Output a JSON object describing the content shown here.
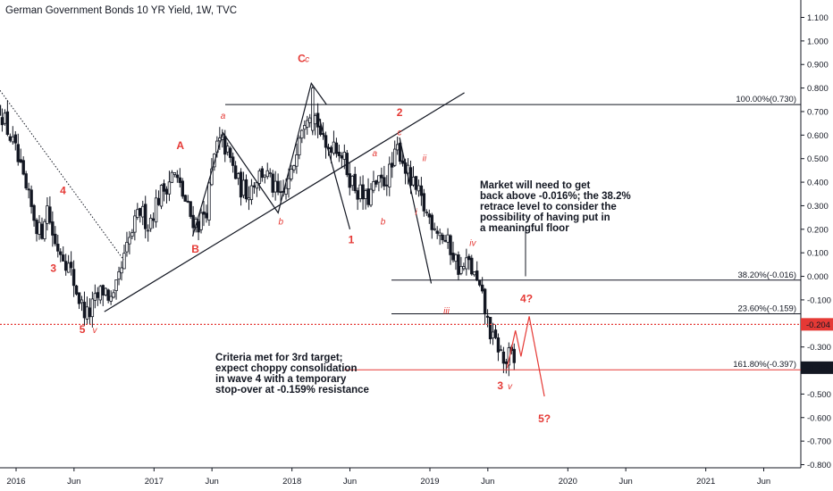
{
  "chart_title": "German Government Bonds 10 YR Yield, 1W, TVC",
  "chart_data": {
    "type": "candlestick",
    "y_ticks": [
      1.1,
      1.0,
      0.9,
      0.8,
      0.7,
      0.6,
      0.5,
      0.4,
      0.3,
      0.2,
      0.1,
      0.0,
      -0.1,
      -0.2,
      -0.3,
      -0.4,
      -0.5,
      -0.6,
      -0.7,
      -0.8
    ],
    "y_tick_labels": [
      "1.100",
      "1.000",
      "0.900",
      "0.800",
      "0.700",
      "0.600",
      "0.500",
      "0.400",
      "0.300",
      "0.200",
      "0.100",
      "0.000",
      "-0.100",
      "-0.200",
      "-0.300",
      "-0.400",
      "-0.500",
      "-0.600",
      "-0.700",
      "-0.800"
    ],
    "ylim": [
      -0.81,
      1.16
    ],
    "x_ticks": [
      {
        "label": "2016",
        "t": 2016.0
      },
      {
        "label": "Jun",
        "t": 2016.42
      },
      {
        "label": "2017",
        "t": 2017.0
      },
      {
        "label": "Jun",
        "t": 2017.42
      },
      {
        "label": "2018",
        "t": 2018.0
      },
      {
        "label": "Jun",
        "t": 2018.42
      },
      {
        "label": "2019",
        "t": 2019.0
      },
      {
        "label": "Jun",
        "t": 2019.42
      },
      {
        "label": "2020",
        "t": 2020.0
      },
      {
        "label": "Jun",
        "t": 2020.42
      },
      {
        "label": "2021",
        "t": 2021.0
      },
      {
        "label": "Jun",
        "t": 2021.42
      }
    ],
    "xlim": [
      2015.88,
      2022.0
    ],
    "price_path": [
      [
        2015.88,
        0.72
      ],
      [
        2015.94,
        0.62
      ],
      [
        2016.0,
        0.52
      ],
      [
        2016.06,
        0.38
      ],
      [
        2016.12,
        0.27
      ],
      [
        2016.18,
        0.17
      ],
      [
        2016.22,
        0.31
      ],
      [
        2016.28,
        0.14
      ],
      [
        2016.34,
        0.1
      ],
      [
        2016.4,
        0.01
      ],
      [
        2016.47,
        -0.12
      ],
      [
        2016.52,
        -0.17
      ],
      [
        2016.58,
        -0.1
      ],
      [
        2016.64,
        -0.05
      ],
      [
        2016.7,
        -0.12
      ],
      [
        2016.76,
        0.02
      ],
      [
        2016.83,
        0.17
      ],
      [
        2016.9,
        0.28
      ],
      [
        2016.96,
        0.22
      ],
      [
        2017.02,
        0.32
      ],
      [
        2017.08,
        0.38
      ],
      [
        2017.14,
        0.44
      ],
      [
        2017.2,
        0.36
      ],
      [
        2017.26,
        0.26
      ],
      [
        2017.32,
        0.22
      ],
      [
        2017.38,
        0.29
      ],
      [
        2017.45,
        0.55
      ],
      [
        2017.5,
        0.57
      ],
      [
        2017.56,
        0.48
      ],
      [
        2017.62,
        0.38
      ],
      [
        2017.68,
        0.36
      ],
      [
        2017.74,
        0.42
      ],
      [
        2017.8,
        0.45
      ],
      [
        2017.86,
        0.38
      ],
      [
        2017.92,
        0.32
      ],
      [
        2018.0,
        0.43
      ],
      [
        2018.05,
        0.62
      ],
      [
        2018.12,
        0.72
      ],
      [
        2018.18,
        0.67
      ],
      [
        2018.24,
        0.53
      ],
      [
        2018.3,
        0.58
      ],
      [
        2018.36,
        0.52
      ],
      [
        2018.42,
        0.42
      ],
      [
        2018.48,
        0.36
      ],
      [
        2018.54,
        0.32
      ],
      [
        2018.6,
        0.38
      ],
      [
        2018.66,
        0.4
      ],
      [
        2018.72,
        0.45
      ],
      [
        2018.77,
        0.55
      ],
      [
        2018.8,
        0.5
      ],
      [
        2018.86,
        0.4
      ],
      [
        2018.92,
        0.34
      ],
      [
        2018.98,
        0.26
      ],
      [
        2019.04,
        0.22
      ],
      [
        2019.1,
        0.16
      ],
      [
        2019.16,
        0.11
      ],
      [
        2019.22,
        0.02
      ],
      [
        2019.28,
        0.06
      ],
      [
        2019.34,
        -0.03
      ],
      [
        2019.38,
        -0.1
      ],
      [
        2019.42,
        -0.2
      ],
      [
        2019.46,
        -0.28
      ],
      [
        2019.5,
        -0.3
      ],
      [
        2019.54,
        -0.38
      ],
      [
        2019.58,
        -0.33
      ],
      [
        2019.62,
        -0.39
      ]
    ],
    "extra_bars": [
      {
        "t": 2018.15,
        "open": 0.62,
        "close": 0.8,
        "high": 0.81,
        "low": 0.6
      }
    ],
    "fib_levels": [
      {
        "label": "100.00%(0.730)",
        "value": 0.73,
        "color": "#131722"
      },
      {
        "label": "38.20%(-0.016)",
        "value": -0.016,
        "color": "#131722"
      },
      {
        "label": "23.60%(-0.159)",
        "value": -0.159,
        "color": "#131722"
      },
      {
        "label": "161.80%(-0.397)",
        "value": -0.397,
        "color": "#e53935"
      }
    ],
    "current_price": {
      "label": "-0.388",
      "value": -0.388
    },
    "marker_price": {
      "label": "-0.204",
      "value": -0.204
    },
    "wave_labels": [
      {
        "text": "4",
        "t": 2016.34,
        "v": 0.35,
        "style": "major"
      },
      {
        "text": "3",
        "t": 2016.27,
        "v": 0.02,
        "style": "major"
      },
      {
        "text": "5",
        "t": 2016.48,
        "v": -0.24,
        "style": "major"
      },
      {
        "text": "v",
        "t": 2016.57,
        "v": -0.24,
        "style": "minor"
      },
      {
        "text": "A",
        "t": 2017.19,
        "v": 0.54,
        "style": "major"
      },
      {
        "text": "B",
        "t": 2017.3,
        "v": 0.1,
        "style": "major"
      },
      {
        "text": "a",
        "t": 2017.5,
        "v": 0.67,
        "style": "minor"
      },
      {
        "text": "b",
        "t": 2017.92,
        "v": 0.22,
        "style": "minor"
      },
      {
        "text": "C",
        "t": 2018.07,
        "v": 0.91,
        "style": "major"
      },
      {
        "text": "c",
        "t": 2018.11,
        "v": 0.91,
        "style": "minor"
      },
      {
        "text": "1",
        "t": 2018.43,
        "v": 0.14,
        "style": "major"
      },
      {
        "text": "2",
        "t": 2018.78,
        "v": 0.68,
        "style": "major"
      },
      {
        "text": "a",
        "t": 2018.6,
        "v": 0.51,
        "style": "minor"
      },
      {
        "text": "b",
        "t": 2018.66,
        "v": 0.22,
        "style": "minor"
      },
      {
        "text": "c",
        "t": 2018.78,
        "v": 0.6,
        "style": "minor"
      },
      {
        "text": "ii",
        "t": 2018.96,
        "v": 0.49,
        "style": "minor"
      },
      {
        "text": "i",
        "t": 2018.9,
        "v": 0.26,
        "style": "minor"
      },
      {
        "text": "iv",
        "t": 2019.31,
        "v": 0.13,
        "style": "minor"
      },
      {
        "text": "iii",
        "t": 2019.12,
        "v": -0.16,
        "style": "minor"
      },
      {
        "text": "4?",
        "t": 2019.7,
        "v": -0.11,
        "style": "major"
      },
      {
        "text": "3",
        "t": 2019.51,
        "v": -0.48,
        "style": "major"
      },
      {
        "text": "v",
        "t": 2019.58,
        "v": -0.48,
        "style": "minor"
      },
      {
        "text": "5?",
        "t": 2019.83,
        "v": -0.62,
        "style": "major"
      }
    ]
  },
  "notes": {
    "note1": [
      "Market will need to get",
      "back above -0.016%; the 38.2%",
      "retrace level to consider the",
      "possibility of having put in",
      "a meaningful floor"
    ],
    "note2": [
      "Criteria met for 3rd target;",
      "expect choppy consolidation",
      "in wave 4 with a temporary",
      "stop-over at -0.159% resistance"
    ]
  },
  "colors": {
    "up": "#131722",
    "down": "#131722",
    "accent": "#e53935",
    "grid": "#e0e3eb"
  }
}
